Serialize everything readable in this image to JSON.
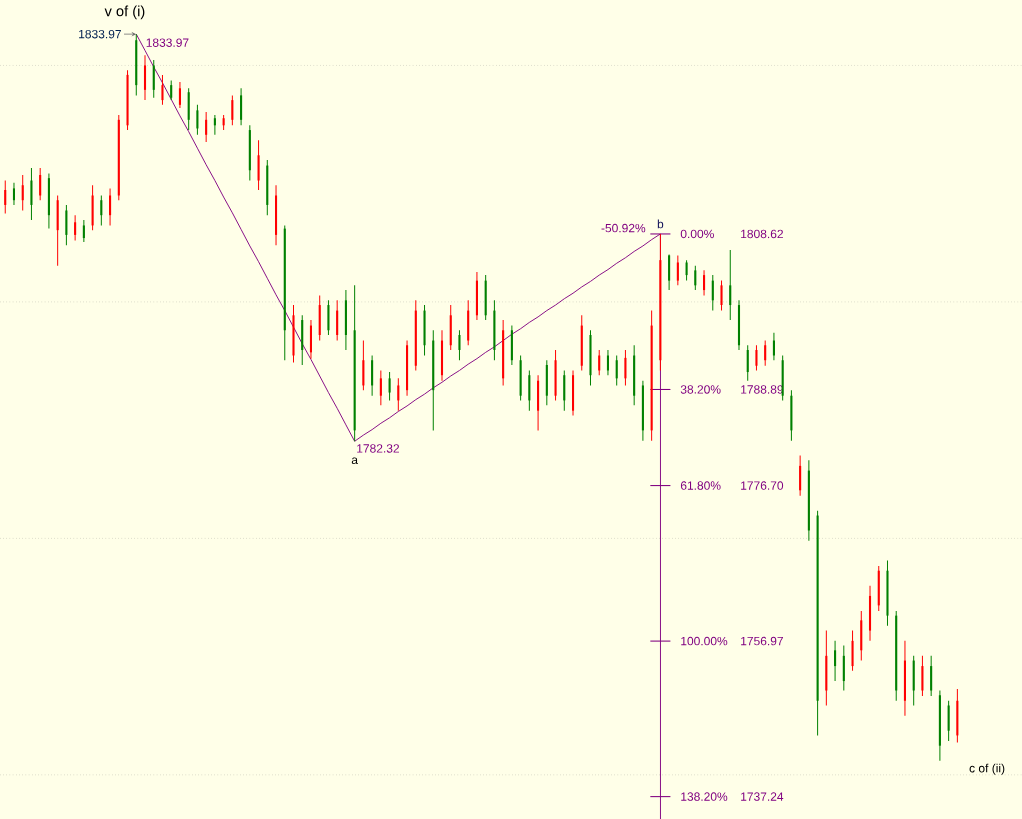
{
  "chart_data": {
    "type": "candlestick",
    "categories": [
      null,
      null,
      null,
      null,
      null,
      null,
      null,
      null,
      null,
      null,
      null,
      null,
      null,
      null,
      null,
      null,
      null,
      null,
      null,
      null,
      null,
      null,
      null,
      null,
      null,
      null,
      null,
      null,
      null,
      null,
      null,
      null,
      null,
      null,
      null,
      null,
      null,
      null,
      null,
      null,
      null,
      null,
      null,
      null,
      null,
      null,
      null,
      null,
      null,
      null,
      null,
      null,
      null,
      null,
      null,
      null,
      null,
      null,
      null,
      null,
      null,
      null,
      null,
      null,
      null,
      null,
      null,
      null,
      null,
      null,
      null,
      null,
      null,
      null,
      null,
      null,
      null,
      null,
      null,
      null,
      null,
      null,
      null,
      null,
      null,
      null,
      null,
      null,
      null,
      null,
      null,
      null,
      null,
      null,
      null,
      null,
      null,
      null,
      null,
      null,
      null,
      null,
      null,
      null,
      null,
      null,
      null,
      null,
      null,
      null
    ],
    "ohlc": [
      [
        1812.3,
        1815.4,
        1811.2,
        1814.2
      ],
      [
        1814.4,
        1815.1,
        1812.3,
        1812.9
      ],
      [
        1812.9,
        1816.1,
        1811.6,
        1814.8
      ],
      [
        1815.4,
        1817.0,
        1810.4,
        1812.3
      ],
      [
        1813.5,
        1817.0,
        1812.9,
        1816.1
      ],
      [
        1815.7,
        1816.3,
        1809.3,
        1811.0
      ],
      [
        1809.1,
        1813.5,
        1804.6,
        1812.9
      ],
      [
        1811.6,
        1812.3,
        1807.2,
        1808.5
      ],
      [
        1808.5,
        1811.0,
        1807.8,
        1810.1
      ],
      [
        1809.7,
        1810.4,
        1807.6,
        1808.1
      ],
      [
        1809.7,
        1814.8,
        1809.1,
        1813.5
      ],
      [
        1812.9,
        1813.5,
        1809.7,
        1811.0
      ],
      [
        1811.0,
        1814.4,
        1809.7,
        1813.5
      ],
      [
        1813.5,
        1823.7,
        1812.9,
        1823.1
      ],
      [
        1822.4,
        1829.4,
        1821.8,
        1828.8
      ],
      [
        1833.2,
        1833.97,
        1826.2,
        1827.5
      ],
      [
        1826.9,
        1831.3,
        1825.6,
        1830.0
      ],
      [
        1830.0,
        1830.7,
        1825.9,
        1826.9
      ],
      [
        1825.6,
        1828.8,
        1825.0,
        1827.5
      ],
      [
        1827.5,
        1828.1,
        1825.6,
        1825.9
      ],
      [
        1825.0,
        1827.9,
        1824.6,
        1827.1
      ],
      [
        1826.6,
        1827.1,
        1821.8,
        1823.1
      ],
      [
        1824.3,
        1825.0,
        1821.2,
        1822.0
      ],
      [
        1821.2,
        1824.1,
        1820.3,
        1823.1
      ],
      [
        1823.3,
        1823.7,
        1821.2,
        1822.4
      ],
      [
        1822.4,
        1823.7,
        1821.8,
        1823.3
      ],
      [
        1823.1,
        1826.2,
        1822.4,
        1825.6
      ],
      [
        1826.2,
        1827.1,
        1822.4,
        1823.1
      ],
      [
        1821.8,
        1822.4,
        1815.4,
        1816.7
      ],
      [
        1815.4,
        1820.5,
        1814.2,
        1818.6
      ],
      [
        1817.3,
        1818.0,
        1811.0,
        1812.3
      ],
      [
        1808.5,
        1814.8,
        1807.2,
        1813.5
      ],
      [
        1809.3,
        1809.7,
        1792.6,
        1796.4
      ],
      [
        1793.2,
        1799.6,
        1792.3,
        1798.3
      ],
      [
        1797.7,
        1798.3,
        1792.0,
        1793.9
      ],
      [
        1793.6,
        1797.7,
        1792.8,
        1797.0
      ],
      [
        1795.8,
        1800.8,
        1795.1,
        1799.6
      ],
      [
        1799.6,
        1800.2,
        1795.8,
        1796.4
      ],
      [
        1795.8,
        1800.2,
        1795.1,
        1798.9
      ],
      [
        1800.2,
        1801.5,
        1793.9,
        1795.8
      ],
      [
        1796.4,
        1802.1,
        1782.32,
        1783.7
      ],
      [
        1789.4,
        1795.1,
        1788.8,
        1792.6
      ],
      [
        1792.6,
        1793.2,
        1788.1,
        1789.4
      ],
      [
        1788.1,
        1791.3,
        1786.9,
        1790.3
      ],
      [
        1790.3,
        1791.1,
        1787.5,
        1788.5
      ],
      [
        1787.5,
        1790.3,
        1786.2,
        1789.4
      ],
      [
        1788.8,
        1795.1,
        1788.1,
        1794.5
      ],
      [
        1791.9,
        1800.2,
        1791.3,
        1798.9
      ],
      [
        1798.9,
        1799.6,
        1793.2,
        1794.5
      ],
      [
        1795.1,
        1796.4,
        1783.7,
        1788.8
      ],
      [
        1790.7,
        1796.4,
        1790.0,
        1795.1
      ],
      [
        1794.5,
        1799.6,
        1793.9,
        1798.3
      ],
      [
        1795.8,
        1796.4,
        1792.6,
        1793.9
      ],
      [
        1795.1,
        1800.2,
        1794.5,
        1798.9
      ],
      [
        1798.3,
        1803.8,
        1797.7,
        1802.7
      ],
      [
        1802.7,
        1803.4,
        1797.7,
        1798.3
      ],
      [
        1798.9,
        1800.2,
        1792.6,
        1793.9
      ],
      [
        1790.3,
        1797.7,
        1789.4,
        1796.4
      ],
      [
        1796.4,
        1797.0,
        1792.0,
        1792.6
      ],
      [
        1792.6,
        1793.2,
        1787.5,
        1788.1
      ],
      [
        1790.7,
        1791.3,
        1786.2,
        1787.5
      ],
      [
        1786.2,
        1790.7,
        1783.7,
        1790.0
      ],
      [
        1792.0,
        1792.6,
        1786.9,
        1788.1
      ],
      [
        1788.1,
        1793.9,
        1787.5,
        1792.6
      ],
      [
        1790.7,
        1791.3,
        1786.2,
        1787.5
      ],
      [
        1786.2,
        1791.3,
        1785.6,
        1790.7
      ],
      [
        1791.9,
        1798.3,
        1791.3,
        1797.0
      ],
      [
        1795.8,
        1796.4,
        1789.4,
        1790.7
      ],
      [
        1791.3,
        1793.9,
        1790.7,
        1793.2
      ],
      [
        1793.2,
        1793.9,
        1790.7,
        1791.3
      ],
      [
        1792.6,
        1793.2,
        1789.4,
        1790.3
      ],
      [
        1790.3,
        1793.9,
        1789.4,
        1792.9
      ],
      [
        1793.2,
        1794.5,
        1786.9,
        1788.1
      ],
      [
        1789.4,
        1790.0,
        1782.4,
        1783.7
      ],
      [
        1783.7,
        1798.9,
        1782.4,
        1797.0
      ],
      [
        1792.6,
        1808.62,
        1791.3,
        1805.3
      ],
      [
        1805.9,
        1806.0,
        1801.5,
        1802.7
      ],
      [
        1802.7,
        1805.9,
        1802.1,
        1805.0
      ],
      [
        1805.0,
        1805.3,
        1802.7,
        1803.4
      ],
      [
        1804.0,
        1804.6,
        1801.5,
        1802.1
      ],
      [
        1801.5,
        1804.0,
        1800.8,
        1803.4
      ],
      [
        1802.7,
        1803.4,
        1798.9,
        1800.2
      ],
      [
        1799.6,
        1802.7,
        1798.9,
        1802.1
      ],
      [
        1802.1,
        1806.6,
        1797.7,
        1799.6
      ],
      [
        1799.6,
        1800.2,
        1793.9,
        1794.5
      ],
      [
        1793.9,
        1794.5,
        1790.0,
        1791.1
      ],
      [
        1791.9,
        1794.5,
        1791.3,
        1793.9
      ],
      [
        1792.6,
        1795.1,
        1791.9,
        1794.5
      ],
      [
        1795.1,
        1796.1,
        1792.6,
        1793.2
      ],
      [
        1792.6,
        1793.2,
        1787.5,
        1788.1
      ],
      [
        1788.1,
        1788.8,
        1782.4,
        1783.7
      ],
      [
        1776.1,
        1780.5,
        1775.4,
        1779.2
      ],
      [
        1778.6,
        1779.9,
        1769.7,
        1771.0
      ],
      [
        1772.9,
        1773.5,
        1745.0,
        1749.4
      ],
      [
        1750.7,
        1758.3,
        1748.8,
        1755.1
      ],
      [
        1755.8,
        1757.0,
        1751.9,
        1753.8
      ],
      [
        1755.1,
        1756.4,
        1750.7,
        1751.9
      ],
      [
        1753.8,
        1758.3,
        1753.2,
        1757.0
      ],
      [
        1755.8,
        1760.8,
        1754.5,
        1759.6
      ],
      [
        1758.3,
        1764.0,
        1757.0,
        1762.7
      ],
      [
        1761.5,
        1766.5,
        1760.8,
        1765.9
      ],
      [
        1765.9,
        1767.2,
        1758.9,
        1760.2
      ],
      [
        1760.2,
        1760.8,
        1749.4,
        1750.7
      ],
      [
        1749.4,
        1757.0,
        1747.5,
        1754.5
      ],
      [
        1754.5,
        1755.1,
        1748.8,
        1750.7
      ],
      [
        1750.7,
        1755.1,
        1750.0,
        1753.8
      ],
      [
        1753.8,
        1755.1,
        1750.0,
        1750.7
      ],
      [
        1750.1,
        1750.7,
        1741.8,
        1743.7
      ],
      [
        1748.8,
        1749.4,
        1744.3,
        1745.6
      ],
      [
        1745.0,
        1750.9,
        1744.1,
        1749.4
      ]
    ],
    "colors": [
      "#ff0000",
      "#008000",
      "#ff0000",
      "#008000",
      "#ff0000",
      "#008000",
      "#ff0000",
      "#008000",
      "#ff0000",
      "#008000",
      "#ff0000",
      "#008000",
      "#ff0000",
      "#ff0000",
      "#ff0000",
      "#008000",
      "#ff0000",
      "#008000",
      "#ff0000",
      "#008000",
      "#ff0000",
      "#008000",
      "#008000",
      "#ff0000",
      "#008000",
      "#ff0000",
      "#ff0000",
      "#008000",
      "#008000",
      "#ff0000",
      "#008000",
      "#ff0000",
      "#008000",
      "#ff0000",
      "#008000",
      "#ff0000",
      "#ff0000",
      "#008000",
      "#ff0000",
      "#008000",
      "#008000",
      "#ff0000",
      "#008000",
      "#ff0000",
      "#008000",
      "#ff0000",
      "#ff0000",
      "#ff0000",
      "#008000",
      "#008000",
      "#ff0000",
      "#ff0000",
      "#008000",
      "#ff0000",
      "#ff0000",
      "#008000",
      "#008000",
      "#ff0000",
      "#008000",
      "#008000",
      "#008000",
      "#ff0000",
      "#008000",
      "#ff0000",
      "#008000",
      "#ff0000",
      "#ff0000",
      "#008000",
      "#ff0000",
      "#008000",
      "#008000",
      "#ff0000",
      "#008000",
      "#008000",
      "#ff0000",
      "#ff0000",
      "#008000",
      "#ff0000",
      "#008000",
      "#008000",
      "#ff0000",
      "#008000",
      "#ff0000",
      "#008000",
      "#008000",
      "#008000",
      "#ff0000",
      "#ff0000",
      "#008000",
      "#008000",
      "#008000",
      "#ff0000",
      "#008000",
      "#008000",
      "#ff0000",
      "#008000",
      "#008000",
      "#ff0000",
      "#ff0000",
      "#ff0000",
      "#ff0000",
      "#008000",
      "#008000",
      "#ff0000",
      "#008000",
      "#ff0000",
      "#008000",
      "#008000",
      "#008000",
      "#ff0000"
    ],
    "series": [
      {
        "type": "line",
        "color": "#800080",
        "values": [
          null,
          null,
          null,
          null,
          null,
          null,
          null,
          null,
          null,
          null,
          null,
          null,
          null,
          null,
          null,
          1833.97,
          1831.9,
          1829.8,
          1827.8,
          1825.7,
          1823.6,
          1821.6,
          1819.5,
          1817.4,
          1815.4,
          1813.3,
          1811.3,
          1809.2,
          1807.1,
          1805.1,
          1803.0,
          1800.9,
          1798.9,
          1796.8,
          1794.7,
          1792.7,
          1790.6,
          1788.5,
          1786.5,
          1784.4,
          1782.32,
          1783.1,
          1783.8,
          1784.6,
          1785.3,
          1786.1,
          1786.8,
          1787.6,
          1788.3,
          1789.1,
          1789.8,
          1790.6,
          1791.3,
          1792.1,
          1792.8,
          1793.6,
          1794.3,
          1795.1,
          1795.9,
          1796.6,
          1797.4,
          1798.1,
          1798.9,
          1799.6,
          1800.4,
          1801.1,
          1801.9,
          1802.6,
          1803.4,
          1804.1,
          1804.9,
          1805.6,
          1806.4,
          1807.1,
          1807.9,
          1808.62,
          null,
          null,
          null,
          null,
          null,
          null,
          null,
          null,
          null,
          null,
          null,
          null,
          null,
          null,
          null,
          null,
          null,
          null,
          null,
          null,
          null,
          null,
          null,
          null,
          null,
          null,
          null,
          null,
          null,
          null,
          null,
          null,
          null,
          null
        ]
      }
    ],
    "ylim": [
      1734.4,
      1838.3
    ],
    "yticks": [
      {
        "value": 1737.24,
        "label": "1737.24"
      },
      {
        "value": 1740,
        "label": null
      },
      {
        "value": 1756.97,
        "label": "1756.97"
      },
      {
        "value": 1770,
        "label": null
      },
      {
        "value": 1776.7,
        "label": "1776.70"
      },
      {
        "value": 1788.89,
        "label": "1788.89"
      },
      {
        "value": 1800,
        "label": null
      },
      {
        "value": 1808.62,
        "label": "1808.62"
      },
      {
        "value": 1830,
        "label": null
      }
    ],
    "grid": "y",
    "tick_labels": "y",
    "annotations": [
      "v of (i)",
      "1833.97",
      "1833.97",
      "1782.32",
      "a",
      "b",
      "-50.92%",
      "0.00%",
      "38.20%",
      "61.80%",
      "100.00%",
      "138.20%",
      "c of (ii)"
    ]
  }
}
